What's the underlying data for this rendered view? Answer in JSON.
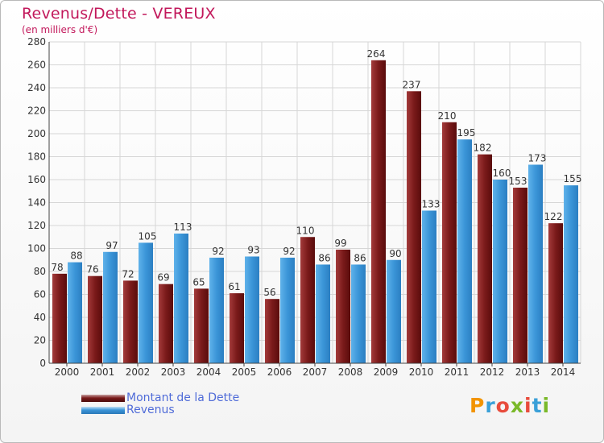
{
  "title": "Revenus/Dette - VEREUX",
  "subtitle": "(en milliers d'€)",
  "logo": {
    "text": "Proxiti",
    "letters": [
      "P",
      "r",
      "o",
      "x",
      "i",
      "t",
      "i"
    ],
    "colors": [
      "#f29400",
      "#3aa0d8",
      "#e84c3d",
      "#7ab929",
      "#e84c3d",
      "#3aa0d8",
      "#7ab929"
    ]
  },
  "colors": {
    "dette": "#7a1a1a",
    "revenus": "#3b95d8",
    "title": "#c2185b",
    "legend_text": "#4f6bd8"
  },
  "chart_data": {
    "type": "bar",
    "categories": [
      "2000",
      "2001",
      "2002",
      "2003",
      "2004",
      "2005",
      "2006",
      "2007",
      "2008",
      "2009",
      "2010",
      "2011",
      "2012",
      "2013",
      "2014"
    ],
    "series": [
      {
        "name": "Montant de la Dette",
        "values": [
          78,
          76,
          72,
          69,
          65,
          61,
          56,
          110,
          99,
          264,
          237,
          210,
          182,
          153,
          122
        ]
      },
      {
        "name": "Revenus",
        "values": [
          88,
          97,
          105,
          113,
          92,
          93,
          92,
          86,
          86,
          90,
          133,
          195,
          160,
          173,
          155
        ]
      }
    ],
    "ylim": [
      0,
      280
    ],
    "yticks": [
      0,
      20,
      40,
      60,
      80,
      100,
      120,
      140,
      160,
      180,
      200,
      220,
      240,
      260,
      280
    ],
    "grid": true,
    "legend": "bottom-left"
  }
}
